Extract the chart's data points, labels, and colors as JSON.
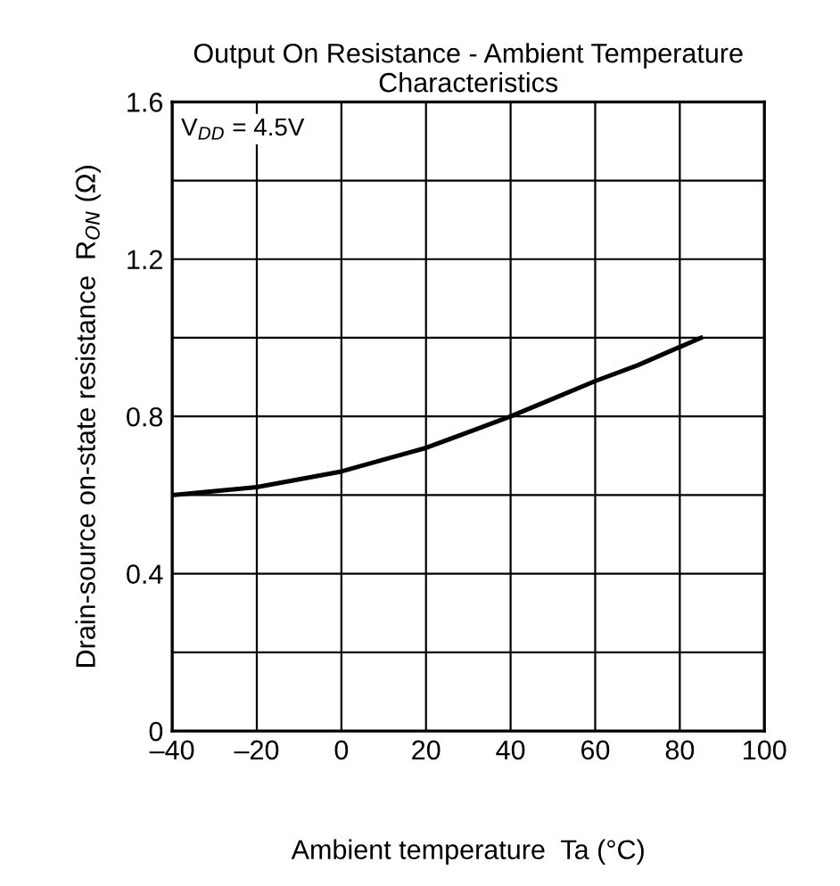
{
  "chart_data": {
    "type": "line",
    "title": "Output On Resistance - Ambient Temperature\nCharacteristics",
    "xlabel": "Ambient temperature  Ta (°C)",
    "ylabel": "Drain-source on-state resistance  R$_{ON}$ (Ω)",
    "annotations": [
      "V$_{DD}$ = 4.5V"
    ],
    "x": [
      -40,
      -30,
      -20,
      -10,
      0,
      10,
      20,
      30,
      40,
      50,
      60,
      70,
      85
    ],
    "series": [
      {
        "color": "#000000",
        "values": [
          0.6,
          0.61,
          0.62,
          0.64,
          0.66,
          0.69,
          0.72,
          0.76,
          0.8,
          0.845,
          0.89,
          0.93,
          1.0
        ]
      }
    ],
    "xlim": [
      -40,
      100
    ],
    "ylim": [
      0,
      1.6
    ],
    "xticks": [
      {
        "value": -40,
        "label": "–40"
      },
      {
        "value": -20,
        "label": "–20"
      },
      0,
      20,
      40,
      60,
      80,
      100
    ],
    "yticks": [
      0,
      {
        "value": 0.2,
        "label": null
      },
      0.4,
      {
        "value": 0.6,
        "label": null
      },
      0.8,
      {
        "value": 1.0,
        "label": null
      },
      1.2,
      {
        "value": 1.4,
        "label": null
      },
      1.6
    ],
    "grid": true,
    "marker": "none",
    "line_style": "solid"
  }
}
